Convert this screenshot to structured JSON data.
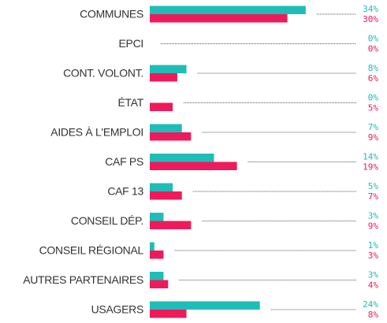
{
  "chart_data": {
    "type": "bar",
    "orientation": "horizontal",
    "categories": [
      "COMMUNES",
      "EPCI",
      "CONT. VOLONT.",
      "ÉTAT",
      "AIDES À L'EMPLOI",
      "CAF PS",
      "CAF 13",
      "CONSEIL DÉP.",
      "CONSEIL RÉGIONAL",
      "AUTRES PARTENAIRES",
      "USAGERS"
    ],
    "series": [
      {
        "color": "#1fbdb7",
        "values": [
          34,
          0,
          8,
          0,
          7,
          14,
          5,
          3,
          1,
          3,
          24
        ],
        "value_labels": [
          "34%",
          "0%",
          "8%",
          "0%",
          "7%",
          "14%",
          "5%",
          "3%",
          "1%",
          "3%",
          "24%"
        ]
      },
      {
        "color": "#ef1a5b",
        "values": [
          30,
          0,
          6,
          5,
          9,
          19,
          7,
          9,
          3,
          4,
          8
        ],
        "value_labels": [
          "30%",
          "0%",
          "6%",
          "5%",
          "9%",
          "19%",
          "7%",
          "9%",
          "3%",
          "4%",
          "8%"
        ]
      }
    ]
  }
}
